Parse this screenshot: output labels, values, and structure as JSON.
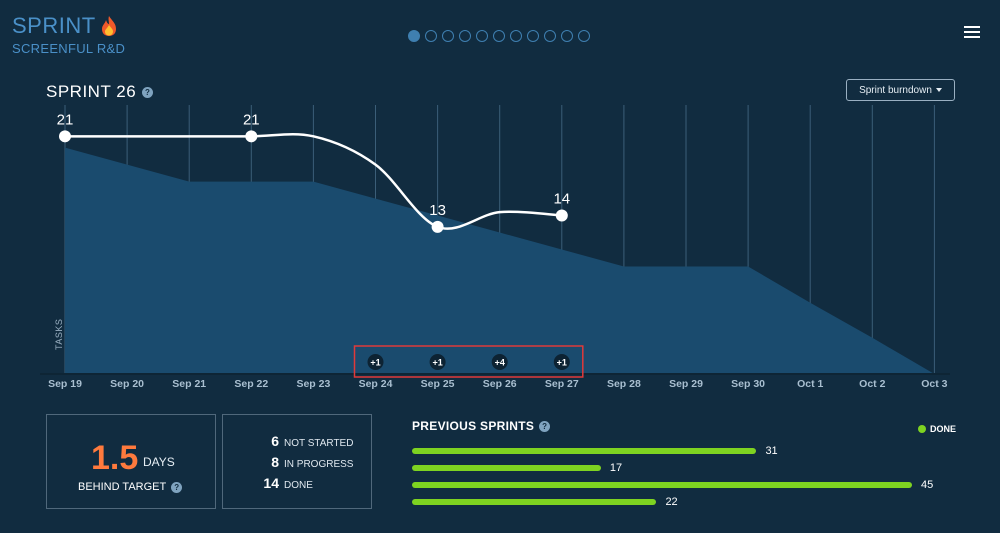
{
  "brand": {
    "title": "SPRINT",
    "icon": "fire-icon",
    "subtitle": "SCREENFUL R&D"
  },
  "pager": {
    "count": 11,
    "active": 0
  },
  "menu": {
    "icon": "hamburger-menu-icon"
  },
  "sprint": {
    "title": "SPRINT 26"
  },
  "view_select": {
    "label": "Sprint burndown"
  },
  "chart_data": {
    "type": "line",
    "ylabel": "TASKS",
    "x": [
      "Sep 19",
      "Sep 20",
      "Sep 21",
      "Sep 22",
      "Sep 23",
      "Sep 24",
      "Sep 25",
      "Sep 26",
      "Sep 27",
      "Sep 28",
      "Sep 29",
      "Sep 30",
      "Oct 1",
      "Oct 2",
      "Oct 3"
    ],
    "ylim": [
      0,
      22
    ],
    "grid": true,
    "colors": {
      "ideal_area": "#1a4b6e",
      "actual_line": "#ffffff",
      "grid": "#3b5e78"
    },
    "series": [
      {
        "type": "area",
        "values": [
          20,
          18.5,
          17,
          17,
          17,
          15.5,
          14,
          12.5,
          11,
          9.5,
          9.5,
          9.5,
          6.3,
          3.2,
          0
        ]
      },
      {
        "type": "line",
        "x": [
          "Sep 19",
          "Sep 20",
          "Sep 21",
          "Sep 22",
          "Sep 23",
          "Sep 24",
          "Sep 25",
          "Sep 26",
          "Sep 27"
        ],
        "values": [
          21,
          21,
          21,
          21,
          21,
          18.5,
          13,
          14.3,
          14
        ]
      }
    ],
    "point_labels": [
      {
        "x": "Sep 19",
        "value": "21"
      },
      {
        "x": "Sep 22",
        "value": "21"
      },
      {
        "x": "Sep 25",
        "value": "13"
      },
      {
        "x": "Sep 27",
        "value": "14"
      }
    ],
    "added_badges": [
      {
        "x": "Sep 24",
        "label": "+1"
      },
      {
        "x": "Sep 25",
        "label": "+1"
      },
      {
        "x": "Sep 26",
        "label": "+4"
      },
      {
        "x": "Sep 27",
        "label": "+1"
      }
    ]
  },
  "behind": {
    "value": "1.5",
    "unit": "DAYS",
    "label": "BEHIND TARGET"
  },
  "status": [
    {
      "count": "6",
      "label": "NOT STARTED"
    },
    {
      "count": "8",
      "label": "IN PROGRESS"
    },
    {
      "count": "14",
      "label": "DONE"
    }
  ],
  "previous_sprints": {
    "title": "PREVIOUS SPRINTS",
    "legend": {
      "label": "DONE",
      "color": "#7ed321"
    },
    "max": 45,
    "bars": [
      {
        "value": 31
      },
      {
        "value": 17
      },
      {
        "value": 45
      },
      {
        "value": 22
      }
    ]
  }
}
